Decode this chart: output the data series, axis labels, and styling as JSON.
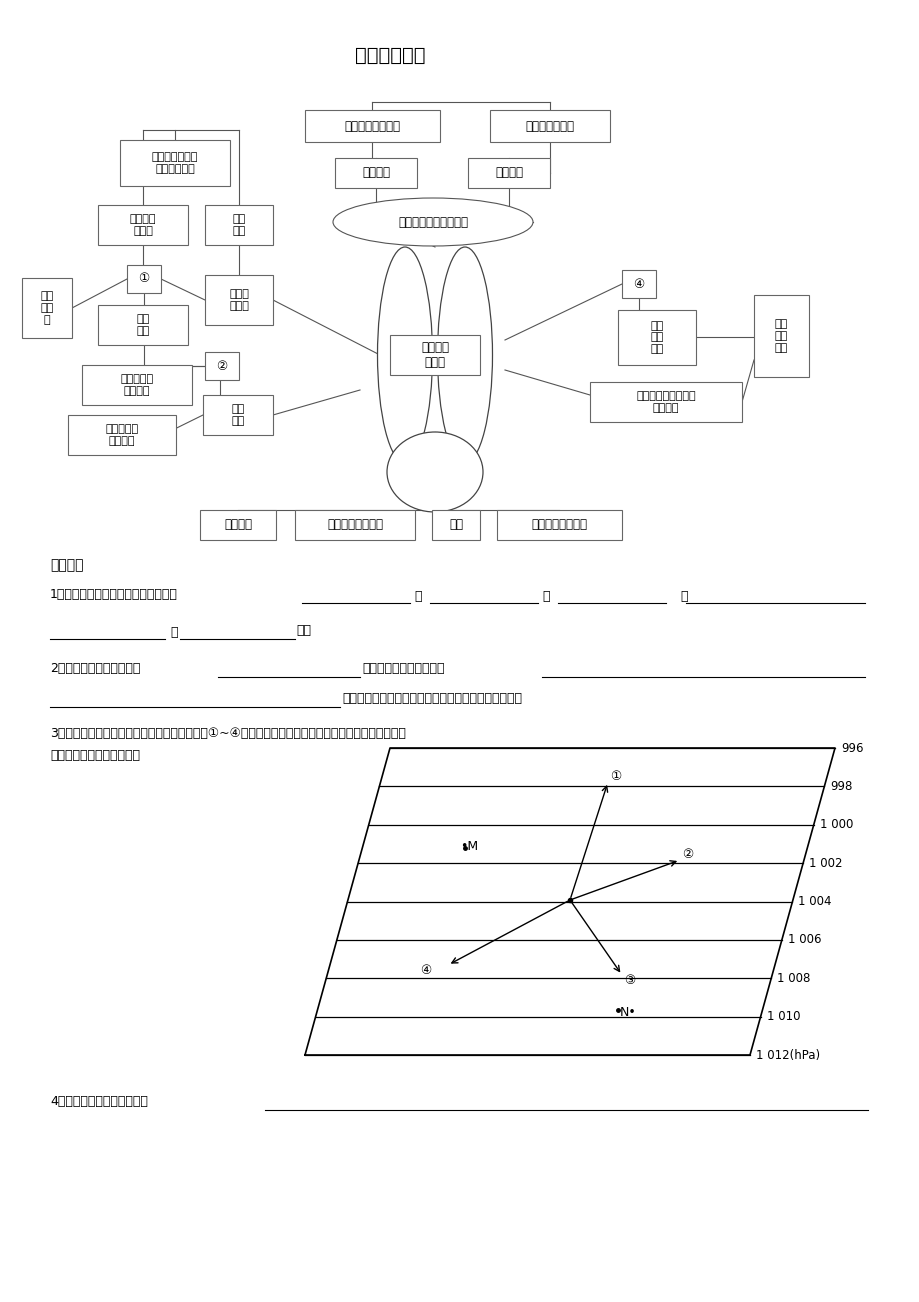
{
  "title": "地球上的大气",
  "bg_color": "#ffffff",
  "section_title": "课堂小测",
  "isobar_values": [
    "996",
    "998",
    "1 000",
    "1 002",
    "1 004",
    "1 006",
    "1 008",
    "1 010",
    "1 012(hPa)"
  ]
}
